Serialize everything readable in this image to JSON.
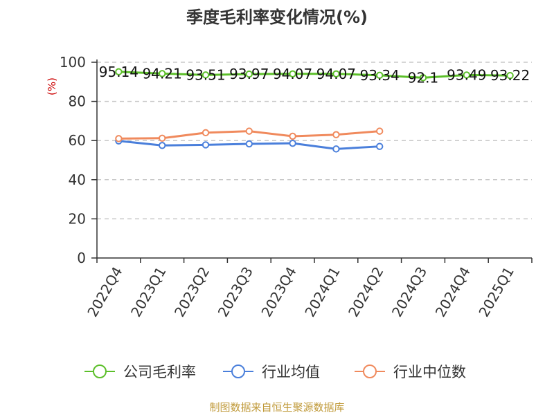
{
  "chart_data": {
    "type": "line",
    "title": "季度毛利率变化情况(%)",
    "unit_label": "(%)",
    "categories": [
      "2022Q4",
      "2023Q1",
      "2023Q2",
      "2023Q3",
      "2023Q4",
      "2024Q1",
      "2024Q2",
      "2024Q3",
      "2024Q4",
      "2025Q1"
    ],
    "ylim": [
      0,
      100
    ],
    "yticks": [
      0,
      20,
      40,
      60,
      80,
      100
    ],
    "grid": true,
    "legend_position": "bottom",
    "series": [
      {
        "name": "公司毛利率",
        "color": "#5cbf2a",
        "values": [
          95.14,
          94.21,
          93.51,
          93.97,
          94.07,
          94.07,
          93.34,
          92.1,
          93.49,
          93.22
        ],
        "labels": [
          "95.14",
          "94.21",
          "93.51",
          "93.97",
          "94.07",
          "94.07",
          "93.34",
          "92.1",
          "93.49",
          "93.22"
        ]
      },
      {
        "name": "行业均值",
        "color": "#4a7fdb",
        "values": [
          59.8,
          57.5,
          57.8,
          58.3,
          58.6,
          55.7,
          57.0,
          null,
          null,
          null
        ]
      },
      {
        "name": "行业中位数",
        "color": "#f08a5d",
        "values": [
          61.0,
          61.2,
          64.0,
          64.8,
          62.2,
          63.0,
          64.8,
          null,
          null,
          null
        ]
      }
    ],
    "source": "制图数据来自恒生聚源数据库"
  }
}
